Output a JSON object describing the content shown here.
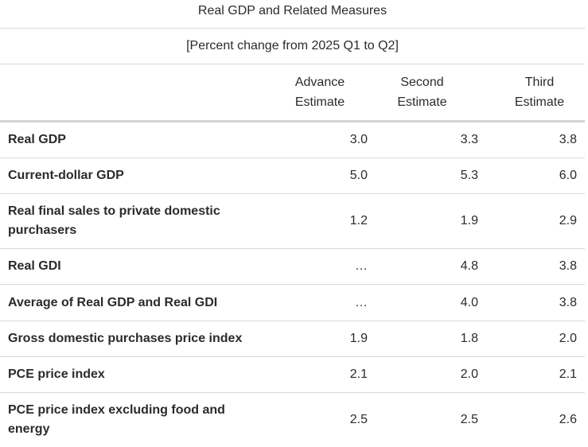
{
  "title": "Real GDP and Related Measures",
  "subtitle": "[Percent change from 2025 Q1 to Q2]",
  "columns": {
    "advance_line1": "Advance",
    "advance_line2": "Estimate",
    "second_line1": "Second",
    "second_line2": "Estimate",
    "third_line1": "Third",
    "third_line2": "Estimate"
  },
  "rows": [
    {
      "label": "Real GDP",
      "advance": "3.0",
      "second": "3.3",
      "third": "3.8"
    },
    {
      "label": "Current-dollar GDP",
      "advance": "5.0",
      "second": "5.3",
      "third": "6.0"
    },
    {
      "label": "Real final sales to private domestic purchasers",
      "advance": "1.2",
      "second": "1.9",
      "third": "2.9"
    },
    {
      "label": "Real GDI",
      "advance": "…",
      "second": "4.8",
      "third": "3.8"
    },
    {
      "label": "Average of Real GDP and Real GDI",
      "advance": "…",
      "second": "4.0",
      "third": "3.8"
    },
    {
      "label": "Gross domestic purchases price index",
      "advance": "1.9",
      "second": "1.8",
      "third": "2.0"
    },
    {
      "label": "PCE price index",
      "advance": "2.1",
      "second": "2.0",
      "third": "2.1"
    },
    {
      "label": "PCE price index excluding food and energy",
      "advance": "2.5",
      "second": "2.5",
      "third": "2.6"
    }
  ]
}
